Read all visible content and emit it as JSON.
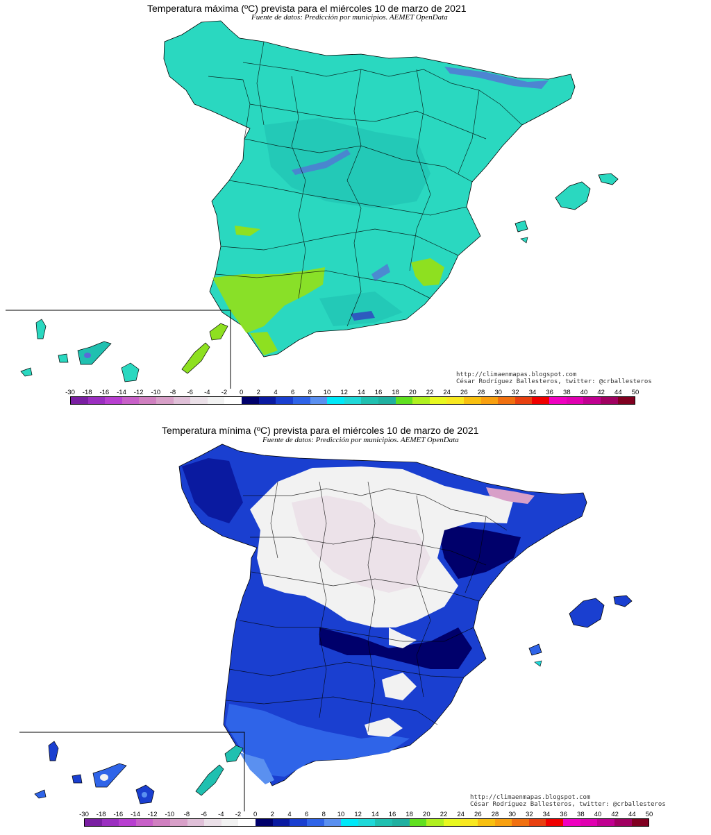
{
  "maps": [
    {
      "id": "max",
      "title": "Temperatura máxima (ºC) prevista para el miércoles 10 de marzo de 2021",
      "subtitle": "Fuente de datos: Predicción por municipios. AEMET OpenData",
      "credit_url": "http://climaenmapas.blogspot.com",
      "credit_author": "César Rodríguez Ballesteros, twitter: @crballesteros",
      "dominant_color": "#2ad8c0",
      "variable": "Temperatura máxima (ºC)",
      "date": "miércoles 10 de marzo de 2021"
    },
    {
      "id": "min",
      "title": "Temperatura mínima (ºC) prevista para el miércoles 10 de marzo de 2021",
      "subtitle": "Fuente de datos: Predicción por municipios. AEMET OpenData",
      "credit_url": "http://climaenmapas.blogspot.com",
      "credit_author": "César Rodríguez Ballesteros, twitter: @crballesteros",
      "dominant_color": "#1a3fd0",
      "variable": "Temperatura mínima (ºC)",
      "date": "miércoles 10 de marzo de 2021"
    }
  ],
  "legend": {
    "labels": [
      "-30",
      "-18",
      "-16",
      "-14",
      "-12",
      "-10",
      "-8",
      "-6",
      "-4",
      "-2",
      "0",
      "2",
      "4",
      "6",
      "8",
      "10",
      "12",
      "14",
      "16",
      "18",
      "20",
      "22",
      "24",
      "26",
      "28",
      "30",
      "32",
      "34",
      "36",
      "38",
      "40",
      "42",
      "44",
      "50"
    ],
    "colors": [
      "#7a1fa2",
      "#9b2fc0",
      "#b83fd0",
      "#c860c8",
      "#d080c0",
      "#d8a0c8",
      "#e0c0d8",
      "#ebe0e8",
      "#f2f2f2",
      "#ffffff",
      "#00006b",
      "#0a1aa0",
      "#1a3fd0",
      "#2f64e8",
      "#5a90f0",
      "#00e8f8",
      "#20d8d8",
      "#20c0b0",
      "#20b0a0",
      "#60e020",
      "#b0f020",
      "#e8f820",
      "#f8e820",
      "#f8c010",
      "#f8a010",
      "#f07010",
      "#e84010",
      "#f00000",
      "#f000c0",
      "#e000b0",
      "#c00090",
      "#a00060",
      "#800020"
    ],
    "unit": "ºC"
  }
}
